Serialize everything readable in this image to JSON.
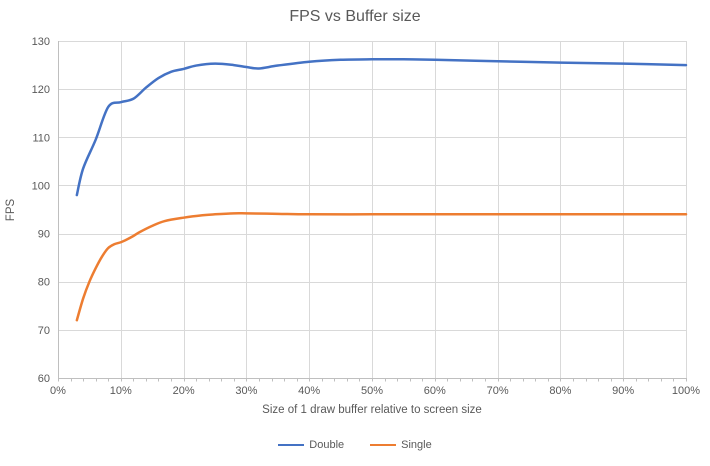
{
  "chart_data": {
    "type": "line",
    "title": "FPS vs Buffer size",
    "xlabel": "Size of 1 draw buffer relative to screen size",
    "ylabel": "FPS",
    "xlim": [
      0,
      100
    ],
    "ylim": [
      60,
      130
    ],
    "y_ticks": [
      60,
      70,
      80,
      90,
      100,
      110,
      120,
      130
    ],
    "x_tick_values": [
      0,
      10,
      20,
      30,
      40,
      50,
      60,
      70,
      80,
      90,
      100
    ],
    "x_tick_labels": [
      "0%",
      "10%",
      "20%",
      "30%",
      "40%",
      "50%",
      "60%",
      "70%",
      "80%",
      "90%",
      "100%"
    ],
    "x_minor_tick_step": 2,
    "grid": true,
    "legend_position": "bottom",
    "line_style": "smooth",
    "colors": {
      "grid": "#D9D9D9",
      "axis": "#BFBFBF",
      "text": "#595959",
      "background": "#FFFFFF"
    },
    "series": [
      {
        "name": "Double",
        "color": "#4472C4",
        "points": [
          [
            3,
            98
          ],
          [
            4,
            103.5
          ],
          [
            6,
            109.5
          ],
          [
            8,
            116.3
          ],
          [
            10,
            117.3
          ],
          [
            12,
            118
          ],
          [
            14,
            120.3
          ],
          [
            16,
            122.3
          ],
          [
            18,
            123.6
          ],
          [
            20,
            124.2
          ],
          [
            22,
            124.9
          ],
          [
            25,
            125.3
          ],
          [
            28,
            125
          ],
          [
            30,
            124.6
          ],
          [
            32,
            124.3
          ],
          [
            35,
            124.9
          ],
          [
            40,
            125.7
          ],
          [
            45,
            126.1
          ],
          [
            50,
            126.2
          ],
          [
            55,
            126.2
          ],
          [
            60,
            126.1
          ],
          [
            70,
            125.8
          ],
          [
            80,
            125.5
          ],
          [
            90,
            125.3
          ],
          [
            100,
            125
          ]
        ]
      },
      {
        "name": "Single",
        "color": "#ED7D31",
        "points": [
          [
            3,
            72
          ],
          [
            4,
            76.5
          ],
          [
            5,
            80
          ],
          [
            6,
            82.8
          ],
          [
            7,
            85.2
          ],
          [
            8,
            87
          ],
          [
            9,
            87.8
          ],
          [
            10,
            88.2
          ],
          [
            11,
            88.8
          ],
          [
            12,
            89.5
          ],
          [
            13,
            90.3
          ],
          [
            15,
            91.6
          ],
          [
            17,
            92.6
          ],
          [
            20,
            93.3
          ],
          [
            23,
            93.8
          ],
          [
            25,
            94
          ],
          [
            28,
            94.2
          ],
          [
            30,
            94.2
          ],
          [
            35,
            94.1
          ],
          [
            40,
            94
          ],
          [
            50,
            94
          ],
          [
            60,
            94
          ],
          [
            70,
            94
          ],
          [
            80,
            94
          ],
          [
            90,
            94
          ],
          [
            100,
            94
          ]
        ]
      }
    ]
  }
}
